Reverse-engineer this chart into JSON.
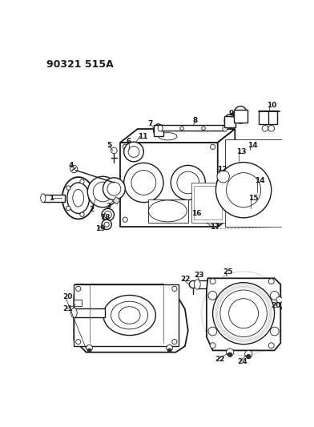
{
  "title": "90321 515A",
  "bg": "#ffffff",
  "lc": "#1a1a1a",
  "fig_w": 3.92,
  "fig_h": 5.33,
  "dpi": 100
}
